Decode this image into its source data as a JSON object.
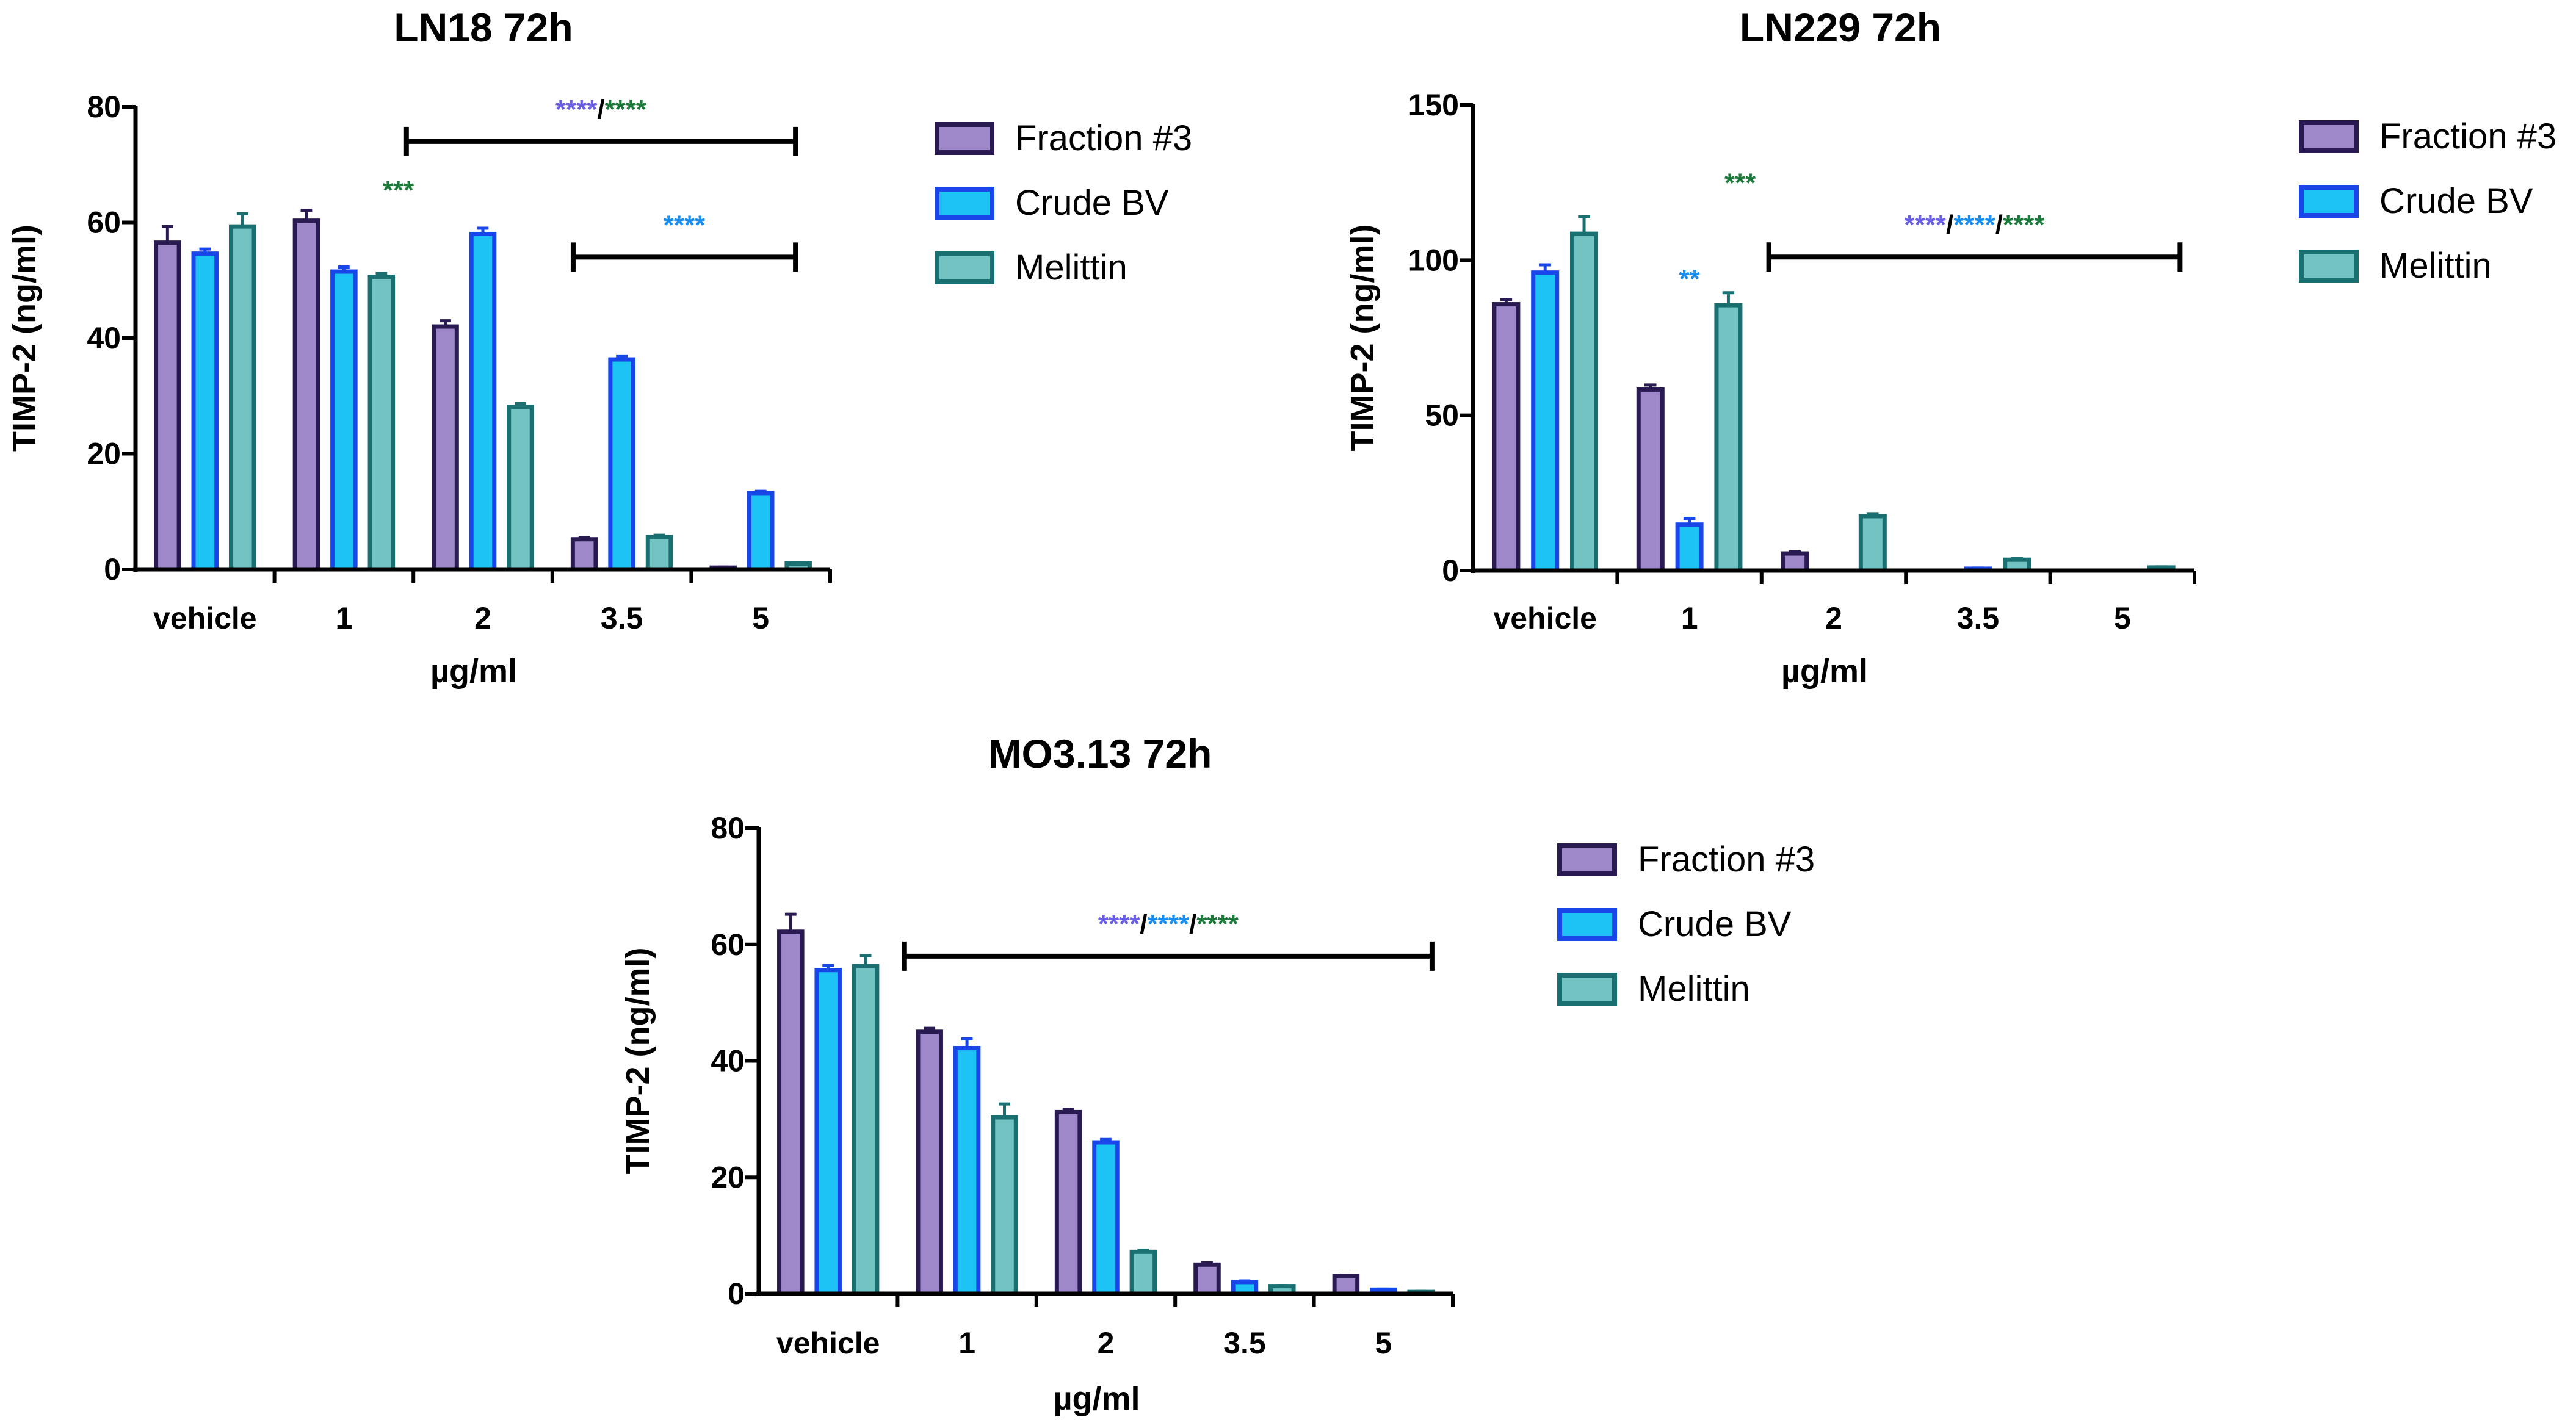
{
  "legend": [
    {
      "label": "Fraction #3",
      "fill": "#9e88c9",
      "stroke": "#2a1a52"
    },
    {
      "label": "Crude BV",
      "fill": "#1cc3f4",
      "stroke": "#1846e8"
    },
    {
      "label": "Melittin",
      "fill": "#73c3c3",
      "stroke": "#1a6f70"
    }
  ],
  "sig_colors": {
    "fraction": "#6a5fe3",
    "crude": "#1a8ef0",
    "melittin": "#1b7a3a"
  },
  "chart_data": [
    {
      "type": "bar",
      "title": "LN18 72h",
      "xlabel": "µg/ml",
      "ylabel": "TIMP-2 (ng/ml)",
      "ylim": [
        0,
        80
      ],
      "yticks": [
        "0",
        "20",
        "40",
        "60",
        "80"
      ],
      "categories": [
        "vehicle",
        "1",
        "2",
        "3.5",
        "5"
      ],
      "series": [
        {
          "name": "Fraction #3",
          "values": [
            56.5,
            60.3,
            42.0,
            5.2,
            0.3
          ],
          "errors": [
            2.8,
            1.8,
            1.0,
            0.3,
            0.1
          ]
        },
        {
          "name": "Crude BV",
          "values": [
            54.6,
            51.5,
            58.0,
            36.3,
            13.2
          ],
          "errors": [
            0.8,
            0.8,
            1.0,
            0.6,
            0.3
          ]
        },
        {
          "name": "Melittin",
          "values": [
            59.3,
            50.6,
            28.1,
            5.6,
            1.0
          ],
          "errors": [
            2.2,
            0.6,
            0.6,
            0.3,
            0.1
          ]
        }
      ],
      "annotations": [
        {
          "parts": [
            {
              "text": "***",
              "color": "melittin"
            }
          ],
          "at_category": 1,
          "offset_group": 1.45,
          "y": 64
        },
        {
          "parts": [
            {
              "text": "****",
              "color": "fraction"
            },
            {
              "text": "/",
              "color": "black"
            },
            {
              "text": "****",
              "color": "melittin"
            }
          ],
          "bracket": [
            1.45,
            4.25
          ],
          "y": 74
        },
        {
          "parts": [
            {
              "text": "****",
              "color": "crude"
            }
          ],
          "bracket": [
            2.65,
            4.25
          ],
          "y": 54
        }
      ]
    },
    {
      "type": "bar",
      "title": "LN229 72h",
      "xlabel": "µg/ml",
      "ylabel": "TIMP-2 (ng/ml)",
      "ylim": [
        0,
        150
      ],
      "yticks": [
        "0",
        "50",
        "100",
        "150"
      ],
      "categories": [
        "vehicle",
        "1",
        "2",
        "3.5",
        "5"
      ],
      "series": [
        {
          "name": "Fraction #3",
          "values": [
            85.8,
            58.3,
            5.5,
            0,
            0
          ],
          "errors": [
            1.5,
            1.5,
            0.5,
            0,
            0
          ]
        },
        {
          "name": "Crude BV",
          "values": [
            96.0,
            14.8,
            0,
            0.6,
            0
          ],
          "errors": [
            2.5,
            2.0,
            0,
            0.2,
            0
          ]
        },
        {
          "name": "Melittin",
          "values": [
            108.5,
            85.5,
            17.5,
            3.5,
            1.0
          ],
          "errors": [
            5.5,
            4.0,
            0.8,
            0.5,
            0.2
          ]
        }
      ],
      "annotations": [
        {
          "parts": [
            {
              "text": "**",
              "color": "crude"
            }
          ],
          "at_category": 1,
          "offset_group": 0,
          "y": 91
        },
        {
          "parts": [
            {
              "text": "***",
              "color": "melittin"
            }
          ],
          "at_category": 1,
          "offset_group": 1.3,
          "y": 122
        },
        {
          "parts": [
            {
              "text": "****",
              "color": "fraction"
            },
            {
              "text": "/",
              "color": "black"
            },
            {
              "text": "****",
              "color": "crude"
            },
            {
              "text": "/",
              "color": "black"
            },
            {
              "text": "****",
              "color": "melittin"
            }
          ],
          "bracket": [
            1.55,
            4.4
          ],
          "y": 101
        }
      ]
    },
    {
      "type": "bar",
      "title": "MO3.13 72h",
      "xlabel": "µg/ml",
      "ylabel": "TIMP-2 (ng/ml)",
      "ylim": [
        0,
        80
      ],
      "yticks": [
        "0",
        "20",
        "40",
        "60",
        "80"
      ],
      "categories": [
        "vehicle",
        "1",
        "2",
        "3.5",
        "5"
      ],
      "series": [
        {
          "name": "Fraction #3",
          "values": [
            62.2,
            45.0,
            31.2,
            5.0,
            3.0
          ],
          "errors": [
            3.0,
            0.6,
            0.5,
            0.3,
            0.2
          ]
        },
        {
          "name": "Crude BV",
          "values": [
            55.6,
            42.2,
            26.0,
            2.0,
            0.7
          ],
          "errors": [
            0.8,
            1.6,
            0.5,
            0.2,
            0.1
          ]
        },
        {
          "name": "Melittin",
          "values": [
            56.3,
            30.3,
            7.2,
            1.3,
            0.3
          ],
          "errors": [
            1.8,
            2.3,
            0.3,
            0.1,
            0.1
          ]
        }
      ],
      "annotations": [
        {
          "parts": [
            {
              "text": "****",
              "color": "fraction"
            },
            {
              "text": "/",
              "color": "black"
            },
            {
              "text": "****",
              "color": "crude"
            },
            {
              "text": "/",
              "color": "black"
            },
            {
              "text": "****",
              "color": "melittin"
            }
          ],
          "bracket": [
            0.55,
            4.35
          ],
          "y": 58
        }
      ]
    }
  ]
}
